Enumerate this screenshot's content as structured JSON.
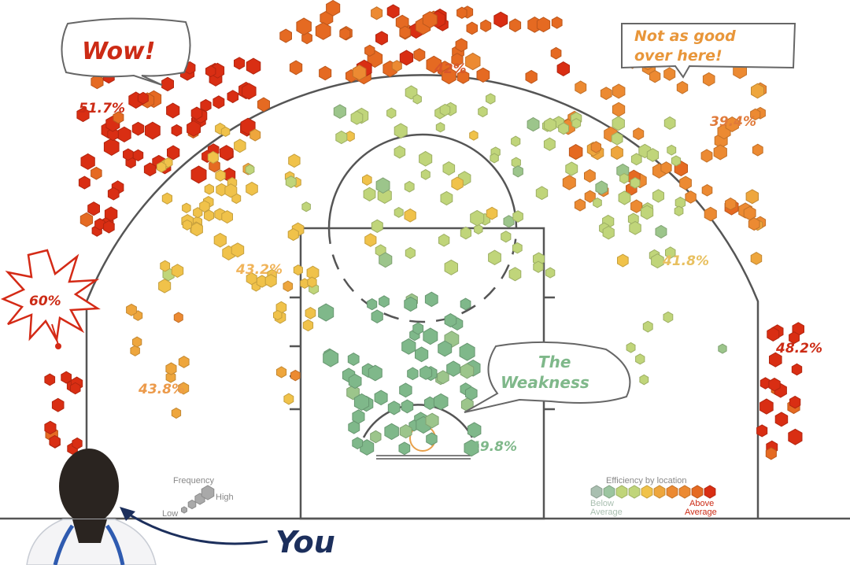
{
  "chart_data": {
    "type": "hexbin-shot-chart",
    "title": "",
    "zones": [
      {
        "name": "left-corner",
        "label": "60%",
        "value": 60.0,
        "level": 7
      },
      {
        "name": "left-wing-three",
        "label": "51.7%",
        "value": 51.7,
        "level": 7
      },
      {
        "name": "top-of-key-three",
        "label": "42%",
        "value": 42.0,
        "level": 6
      },
      {
        "name": "right-wing-three",
        "label": "39.4%",
        "value": 39.4,
        "level": 5
      },
      {
        "name": "right-corner",
        "label": "48.2%",
        "value": 48.2,
        "level": 7
      },
      {
        "name": "left-midrange",
        "label": "43.2%",
        "value": 43.2,
        "level": 3
      },
      {
        "name": "right-midrange",
        "label": "41.8%",
        "value": 41.8,
        "level": 2
      },
      {
        "name": "left-baseline-midrange",
        "label": "43.8%",
        "value": 43.8,
        "level": 4
      },
      {
        "name": "restricted-area",
        "label": "49.8%",
        "value": 49.8,
        "level": 0
      }
    ],
    "colors": [
      "#7fb88a",
      "#9cc58b",
      "#c0d57a",
      "#f0c24a",
      "#eea63d",
      "#ec8a32",
      "#e56a22",
      "#d92e13"
    ],
    "callouts": {
      "wow": "Wow!",
      "not_as_good_line1": "Not as good",
      "not_as_good_line2": "over here!",
      "weakness_line1": "The",
      "weakness_line2": "Weakness",
      "you": "You"
    },
    "legend": {
      "frequency_title": "Frequency",
      "frequency_low": "Low",
      "frequency_high": "High",
      "efficiency_title": "Efficiency by location",
      "efficiency_below_line1": "Below",
      "efficiency_below_line2": "Average",
      "efficiency_above_line1": "Above",
      "efficiency_above_line2": "Average"
    }
  }
}
